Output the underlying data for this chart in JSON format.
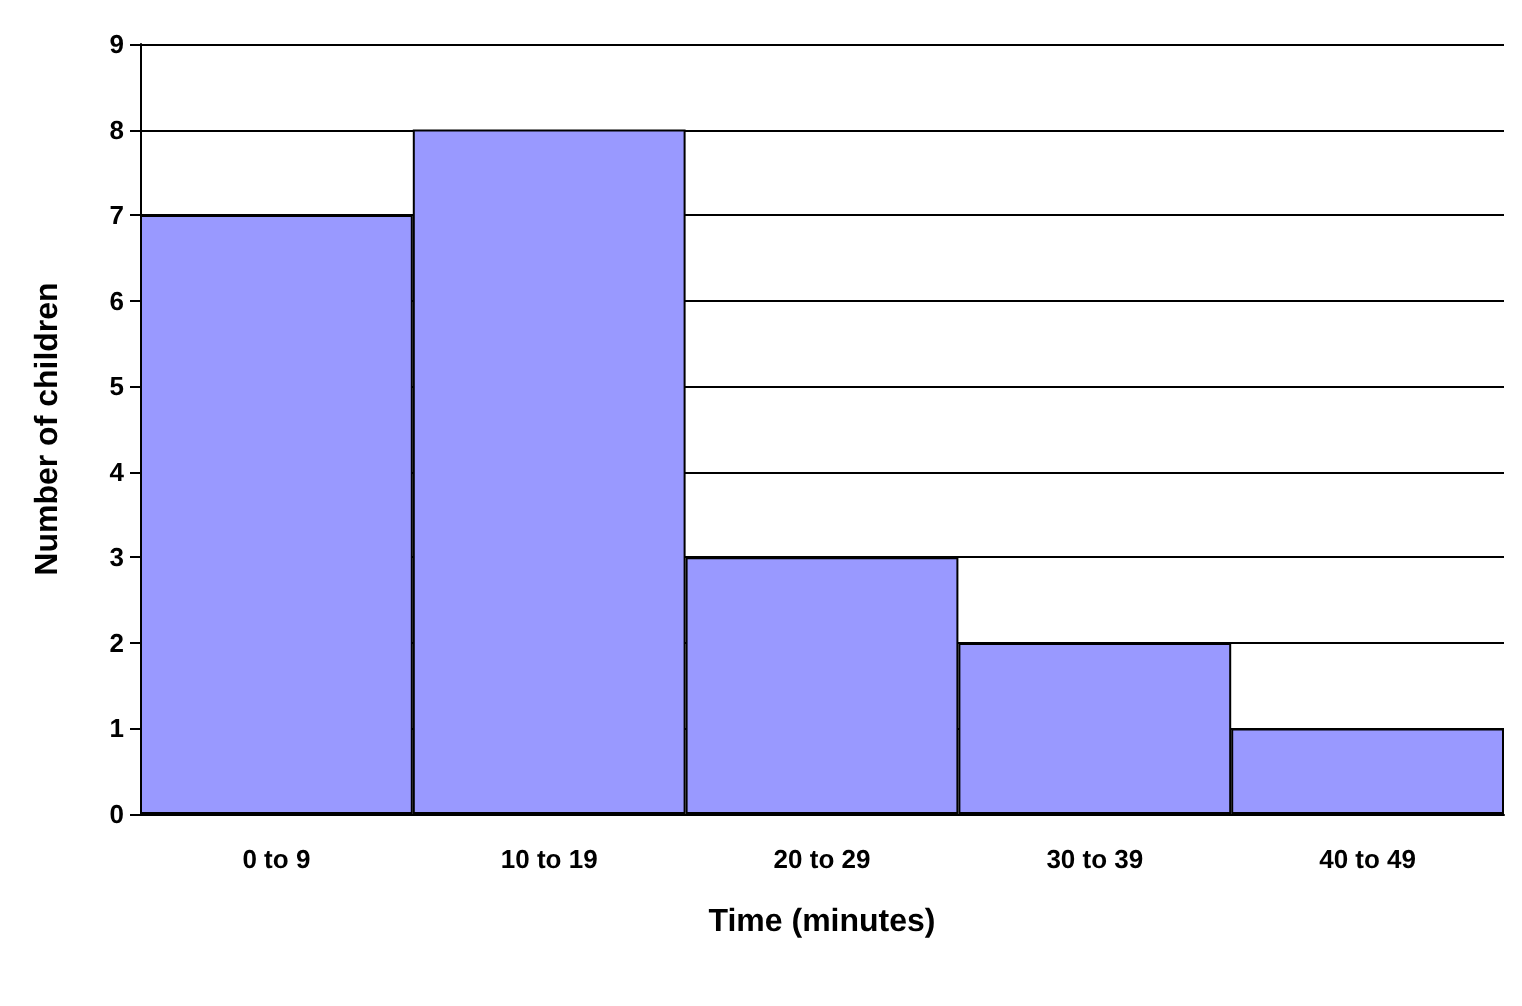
{
  "chart_data": {
    "type": "bar",
    "xlabel": "Time (minutes)",
    "ylabel": "Number of children",
    "categories": [
      "0 to 9",
      "10 to 19",
      "20 to 29",
      "30 to 39",
      "40 to 49"
    ],
    "values": [
      7,
      8,
      3,
      2,
      1
    ],
    "color": "#9999ff",
    "ylim": [
      0,
      9
    ],
    "yticks": [
      0,
      1,
      2,
      3,
      4,
      5,
      6,
      7,
      8,
      9
    ],
    "grid": "y"
  }
}
